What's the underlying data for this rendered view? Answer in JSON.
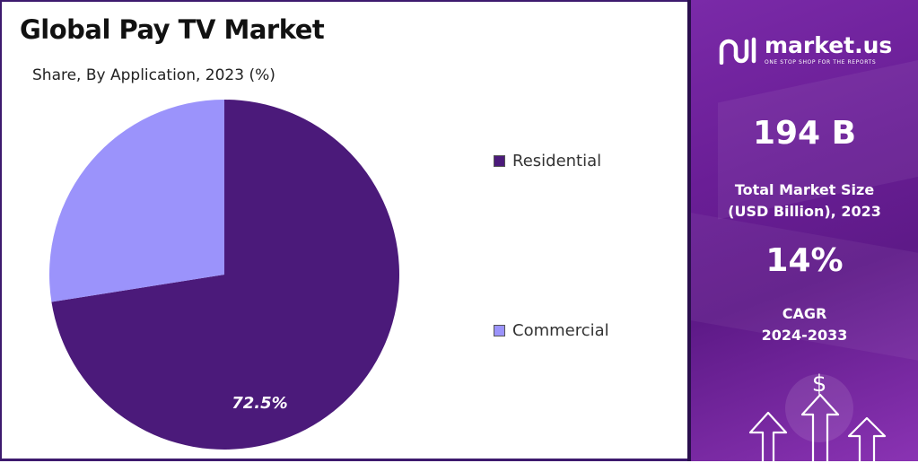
{
  "title": "Global Pay TV Market",
  "subtitle": "Share, By Application, 2023 (%)",
  "chart_data": {
    "type": "pie",
    "categories": [
      "Residential",
      "Commercial"
    ],
    "values": [
      72.5,
      27.5
    ],
    "colors": [
      "#4b1a7a",
      "#9b93fb"
    ],
    "data_labels": [
      "72.5%",
      ""
    ],
    "legend_position": "right",
    "start": "top, clockwise"
  },
  "legend": {
    "items": [
      {
        "label": "Residential",
        "color": "#4b1a7a"
      },
      {
        "label": "Commercial",
        "color": "#9b93fb"
      }
    ]
  },
  "brand": {
    "name": "market.us",
    "tagline": "ONE STOP SHOP FOR THE REPORTS"
  },
  "stats": {
    "market_size_value": "194 B",
    "market_size_label_line1": "Total Market Size",
    "market_size_label_line2": "(USD Billion), 2023",
    "cagr_value": "14%",
    "cagr_label_line1": "CAGR",
    "cagr_label_line2": "2024-2033"
  },
  "decor": {
    "dollar_symbol": "$",
    "icons": [
      "dollar-icon",
      "arrow-up-icon"
    ]
  }
}
